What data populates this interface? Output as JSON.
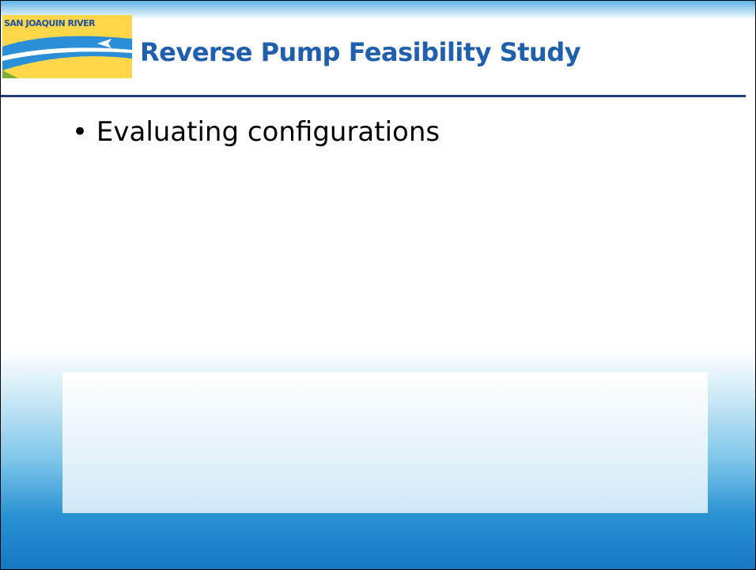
{
  "header": {
    "logo_text": "SAN JOAQUIN RIVER",
    "title": "Reverse Pump Feasibility Study"
  },
  "bullets": [
    "Evaluating configurations"
  ]
}
